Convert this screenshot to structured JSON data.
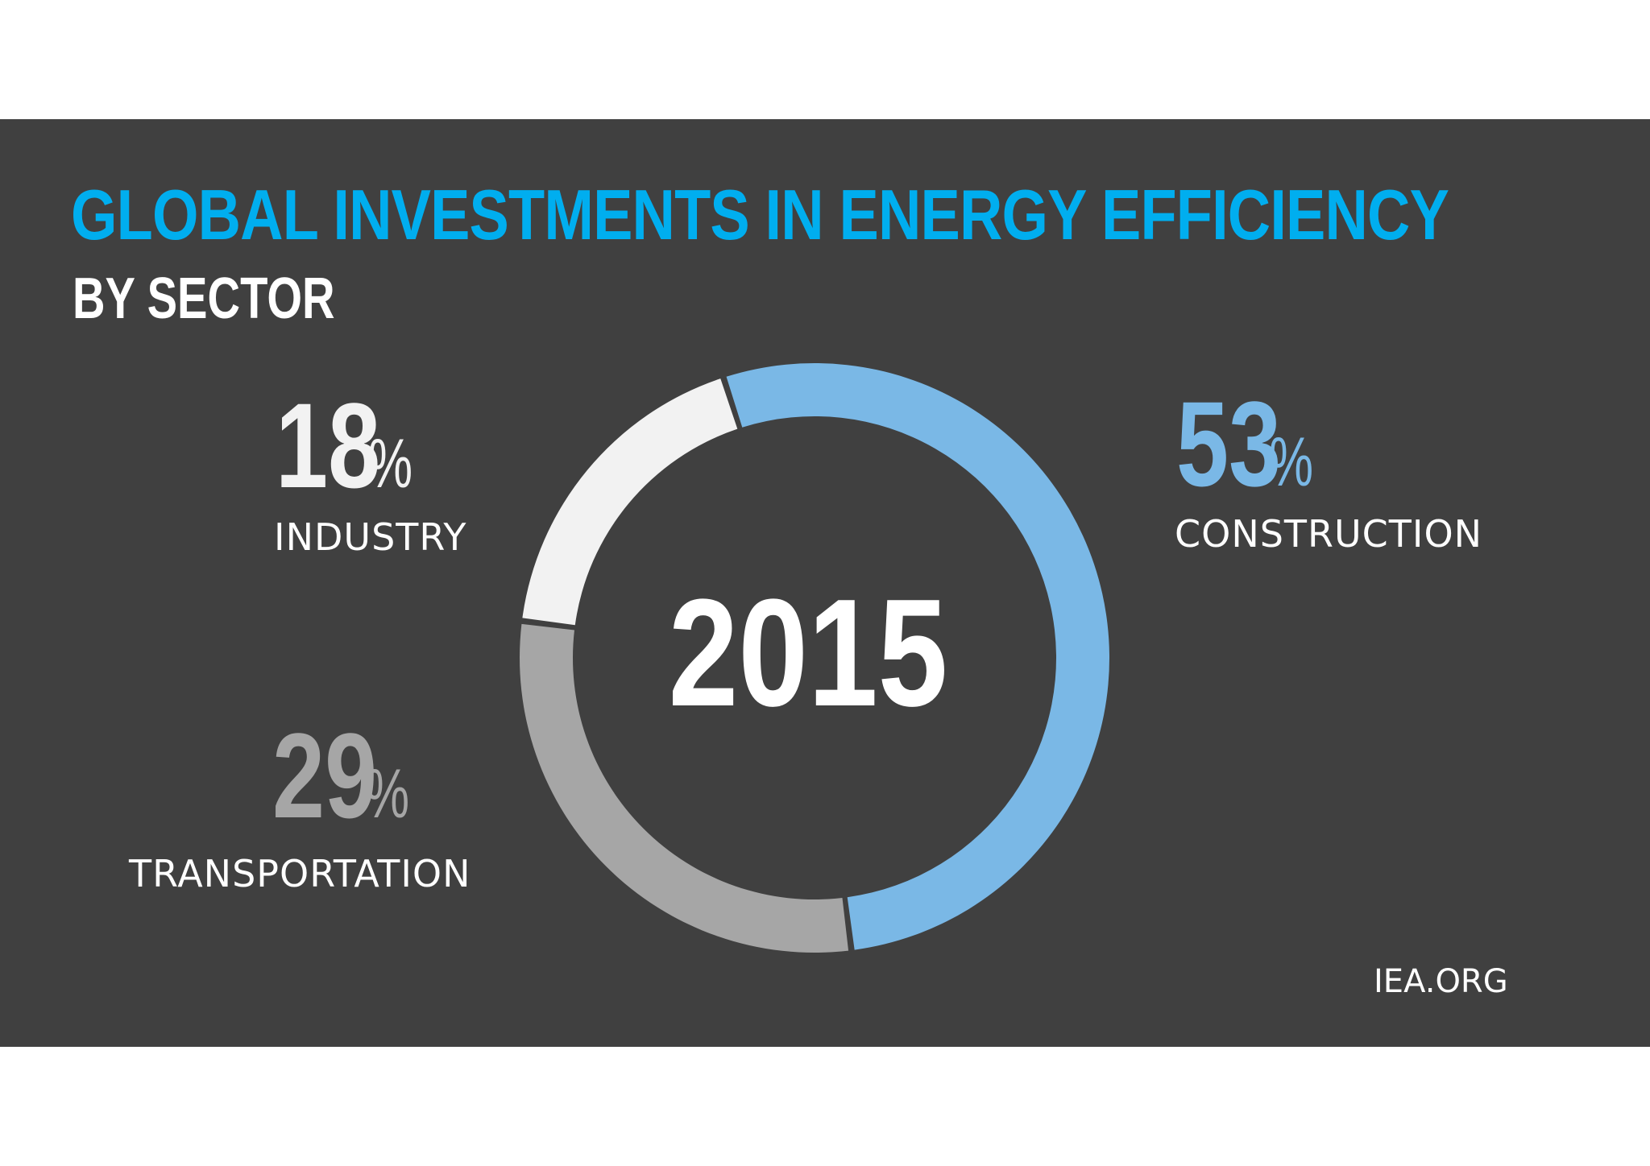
{
  "title": "GLOBAL INVESTMENTS IN ENERGY EFFICIENCY",
  "subtitle": "BY SECTOR",
  "source": "IEA.ORG",
  "chart_data": {
    "type": "pie",
    "center_label": "2015",
    "title": "GLOBAL INVESTMENTS IN ENERGY EFFICIENCY",
    "subtitle": "BY SECTOR",
    "unit": "%",
    "slices": [
      {
        "label": "CONSTRUCTION",
        "value": 53,
        "display": "53",
        "color": "#7ab8e6"
      },
      {
        "label": "TRANSPORTATION",
        "value": 29,
        "display": "29",
        "color": "#a6a6a6"
      },
      {
        "label": "INDUSTRY",
        "value": 18,
        "display": "18",
        "color": "#f2f2f2"
      }
    ]
  },
  "colors": {
    "background": "#404040",
    "title": "#00aeef",
    "text": "#ffffff"
  }
}
